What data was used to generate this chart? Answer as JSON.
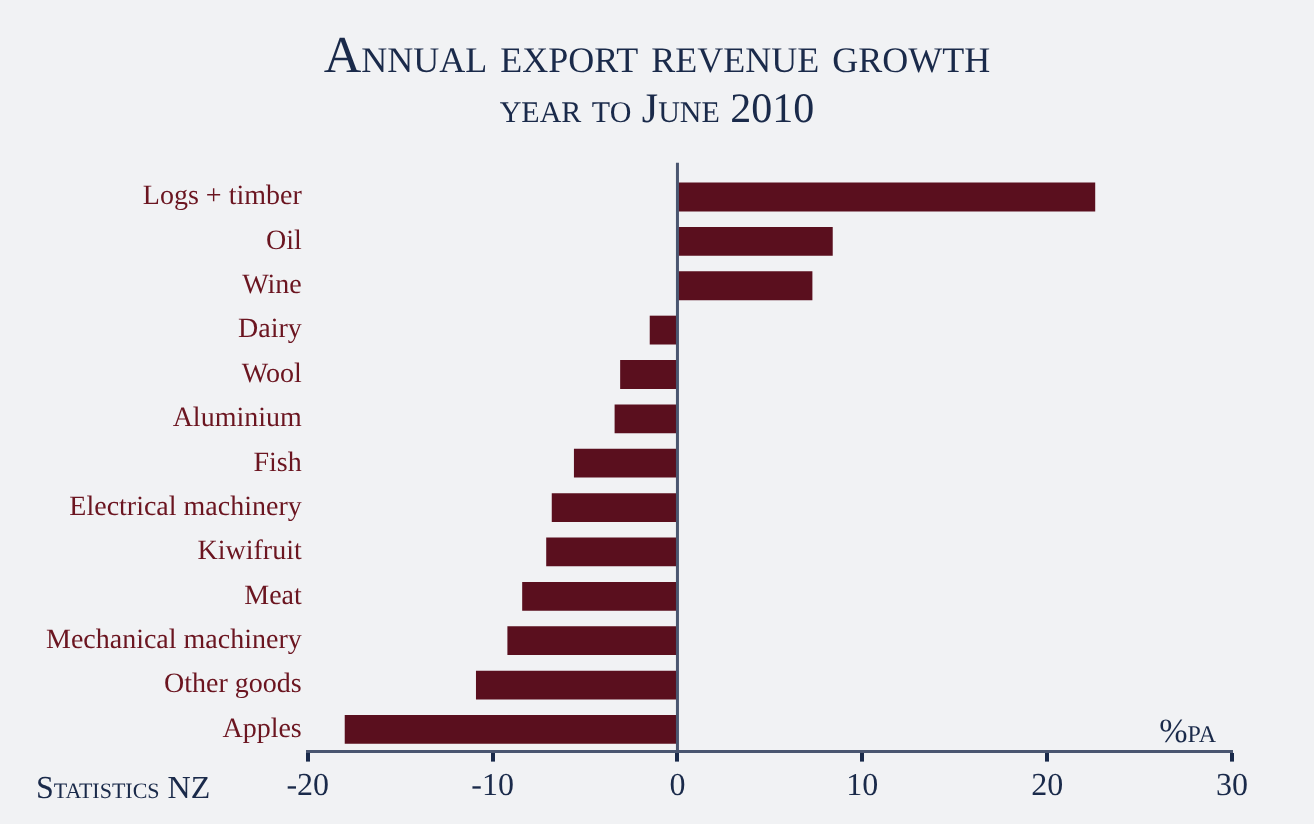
{
  "chart_data": {
    "type": "bar",
    "orientation": "horizontal",
    "title": "Annual export revenue growth",
    "subtitle": "year to June 2010",
    "categories": [
      "Logs + timber",
      "Oil",
      "Wine",
      "Dairy",
      "Wool",
      "Aluminium",
      "Fish",
      "Electrical machinery",
      "Kiwifruit",
      "Meat",
      "Mechanical machinery",
      "Other goods",
      "Apples"
    ],
    "values": [
      22.6,
      8.4,
      7.3,
      -1.5,
      -3.1,
      -3.4,
      -5.6,
      -6.8,
      -7.1,
      -8.4,
      -9.2,
      -10.9,
      -18.0
    ],
    "color": "#5a0f1e",
    "ref_lines": [
      {
        "axis": "x",
        "value": 0,
        "color": "#4a5670"
      }
    ],
    "xlim": [
      -20,
      30
    ],
    "xticks": [
      -20,
      -10,
      0,
      10,
      20,
      30
    ],
    "grid": false,
    "legend": false,
    "annotations": [
      "%pa",
      "Statistics NZ"
    ]
  }
}
